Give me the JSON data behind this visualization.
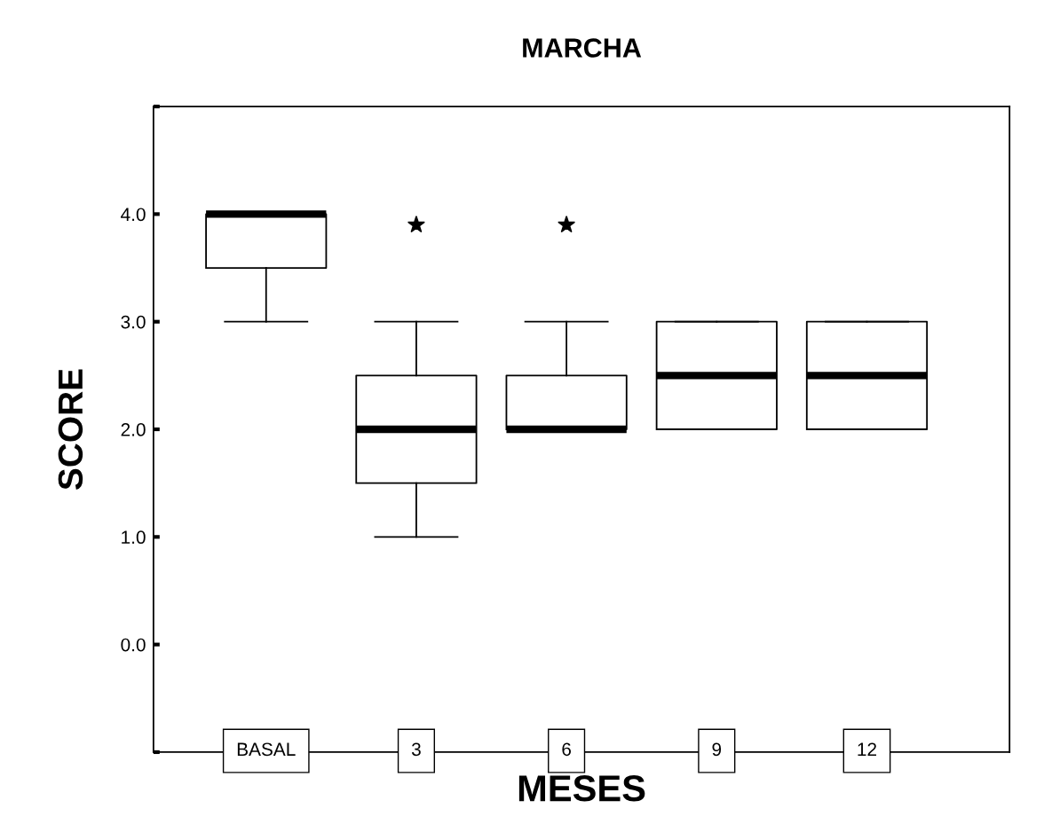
{
  "chart_data": {
    "type": "box",
    "title": "MARCHA",
    "xlabel": "MESES",
    "ylabel": "SCORE",
    "categories": [
      "BASAL",
      "3",
      "6",
      "9",
      "12"
    ],
    "boxes": [
      {
        "low": 3,
        "q1": 3.5,
        "median": 4,
        "q3": 4,
        "high": 4
      },
      {
        "low": 1,
        "q1": 1.5,
        "median": 2,
        "q3": 2.5,
        "high": 3,
        "outliers": [
          3.9
        ]
      },
      {
        "low": 2,
        "q1": 2,
        "median": 2,
        "q3": 2.5,
        "high": 3,
        "outliers": [
          3.9
        ]
      },
      {
        "low": 2,
        "q1": 2,
        "median": 2.5,
        "q3": 3,
        "high": 3
      },
      {
        "low": 2,
        "q1": 2,
        "median": 2.5,
        "q3": 3,
        "high": 3
      }
    ],
    "ylim": [
      -1,
      5
    ],
    "yticks": [
      {
        "value": -1,
        "label": null
      },
      {
        "value": 0,
        "label": "0.0"
      },
      {
        "value": 1,
        "label": "1.0"
      },
      {
        "value": 2,
        "label": "2.0"
      },
      {
        "value": 3,
        "label": "3.0"
      },
      {
        "value": 4,
        "label": "4.0"
      },
      {
        "value": 5,
        "label": null
      }
    ],
    "marker": "star",
    "grid": false,
    "legend": false
  }
}
